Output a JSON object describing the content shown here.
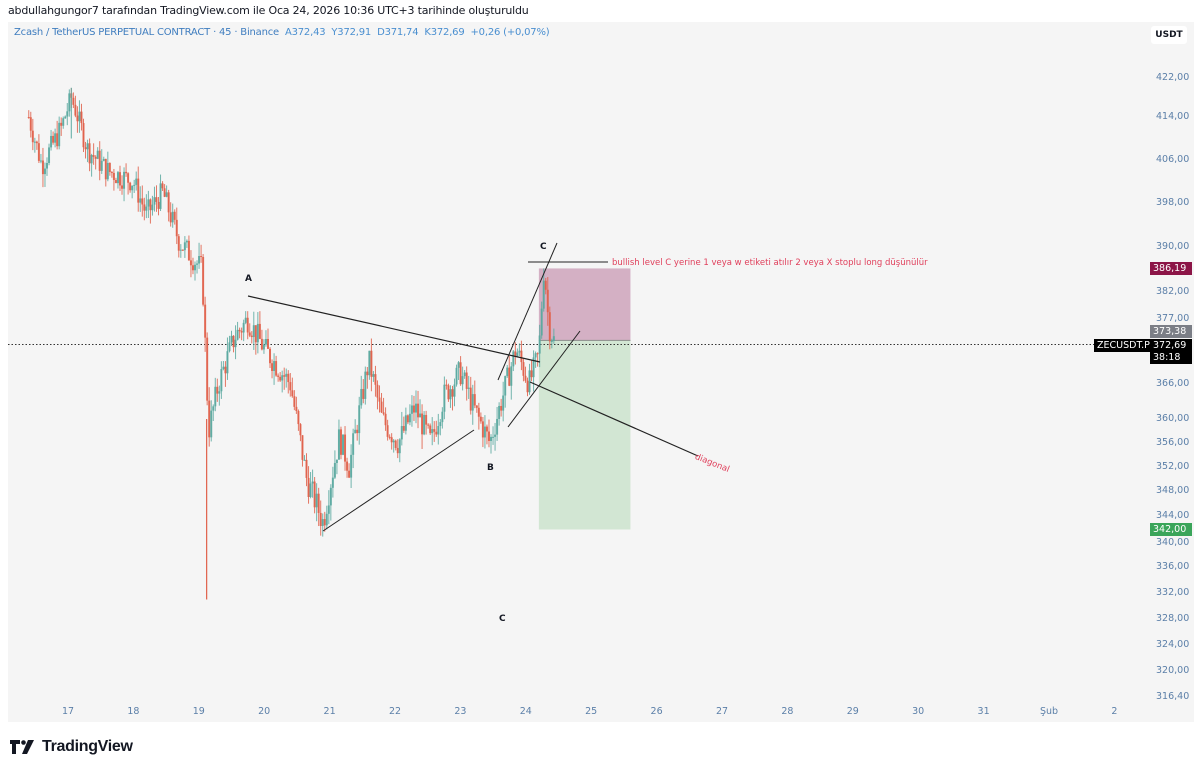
{
  "caption": "abdullahgungor7 tarafından TradingView.com ile Oca 24, 2026 10:36 UTC+3 tarihinde oluşturuldu",
  "legend": {
    "symbol": "Zcash / TetherUS PERPETUAL CONTRACT · 45 · Binance",
    "open": "A372,43",
    "high": "Y372,91",
    "low": "D371,74",
    "close": "K372,69",
    "change": "+0,26 (+0,07%)"
  },
  "currency_button": "USDT",
  "brand": "TradingView",
  "colors": {
    "up": "#5aa9a0",
    "down": "#e0604a",
    "stop_zone": "#d4b0c4",
    "target_zone": "#d2e6d3",
    "stop_badge": "#8c1547",
    "target_badge": "#3aa55a",
    "note_text": "#e0405c",
    "axis_text": "#5b7fa8"
  },
  "badges": {
    "stop_price": "386,19",
    "entry_price": "373,38",
    "symbol_tag": "ZECUSDT.P",
    "last_price": "372,69",
    "countdown": "38:18",
    "target_price": "342,00"
  },
  "annotations": {
    "label_A": "A",
    "label_B": "B",
    "label_C_top": "C",
    "label_C_bottom": "C",
    "note": "bullish level C yerine 1  veya w etiketi atılır 2 veya X stoplu long düşünülür",
    "diagonal": "diagonal"
  },
  "chart_data": {
    "type": "candlestick",
    "title": "Zcash / TetherUS PERPETUAL CONTRACT · 45 · Binance",
    "interval": "45",
    "xlabel": "",
    "ylabel": "USDT",
    "scale": "log",
    "x_ticks": [
      "17",
      "18",
      "19",
      "20",
      "21",
      "22",
      "23",
      "24",
      "25",
      "26",
      "27",
      "28",
      "29",
      "30",
      "31",
      "Şub",
      "2"
    ],
    "y_ticks": [
      "422,00",
      "414,00",
      "406,00",
      "398,00",
      "390,00",
      "382,00",
      "377,00",
      "366,00",
      "360,00",
      "356,00",
      "352,00",
      "348,00",
      "344,00",
      "340,00",
      "336,00",
      "332,00",
      "328,00",
      "324,00",
      "320,00",
      "316,40"
    ],
    "ylim": [
      316.4,
      428
    ],
    "last_price": 372.69,
    "position": {
      "type": "long",
      "entry": 373.38,
      "stop": 386.19,
      "target": 342.0,
      "start_day": 24.2,
      "end_day": 25.6
    },
    "waypoints": [
      {
        "day": 16.4,
        "price": 414
      },
      {
        "day": 16.6,
        "price": 405
      },
      {
        "day": 16.9,
        "price": 412
      },
      {
        "day": 17.05,
        "price": 418
      },
      {
        "day": 17.3,
        "price": 408
      },
      {
        "day": 17.6,
        "price": 404
      },
      {
        "day": 18.0,
        "price": 402
      },
      {
        "day": 18.2,
        "price": 396
      },
      {
        "day": 18.45,
        "price": 400
      },
      {
        "day": 18.7,
        "price": 391
      },
      {
        "day": 19.05,
        "price": 386
      },
      {
        "day": 19.15,
        "price": 358
      },
      {
        "day": 19.3,
        "price": 366
      },
      {
        "day": 19.55,
        "price": 374
      },
      {
        "day": 19.75,
        "price": 377
      },
      {
        "day": 20.0,
        "price": 372
      },
      {
        "day": 20.4,
        "price": 366
      },
      {
        "day": 20.65,
        "price": 350
      },
      {
        "day": 20.9,
        "price": 343
      },
      {
        "day": 21.15,
        "price": 357
      },
      {
        "day": 21.3,
        "price": 352
      },
      {
        "day": 21.6,
        "price": 370
      },
      {
        "day": 21.8,
        "price": 360
      },
      {
        "day": 22.05,
        "price": 356
      },
      {
        "day": 22.3,
        "price": 362
      },
      {
        "day": 22.55,
        "price": 356
      },
      {
        "day": 22.75,
        "price": 364
      },
      {
        "day": 23.0,
        "price": 368
      },
      {
        "day": 23.2,
        "price": 362
      },
      {
        "day": 23.45,
        "price": 356
      },
      {
        "day": 23.7,
        "price": 366
      },
      {
        "day": 23.85,
        "price": 372
      },
      {
        "day": 24.05,
        "price": 366
      },
      {
        "day": 24.2,
        "price": 371
      },
      {
        "day": 24.28,
        "price": 387
      },
      {
        "day": 24.35,
        "price": 376
      },
      {
        "day": 24.45,
        "price": 372.7
      }
    ],
    "wick_extremes": [
      {
        "day": 19.12,
        "low": 331
      },
      {
        "day": 17.05,
        "high": 420
      }
    ]
  }
}
